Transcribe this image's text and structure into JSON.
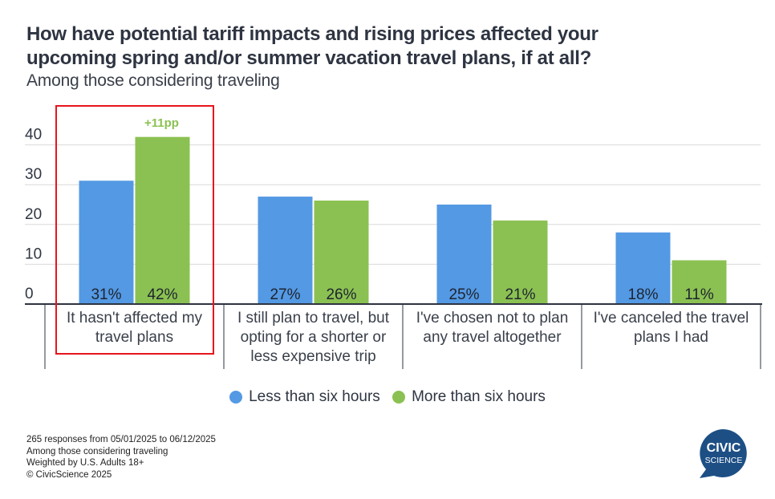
{
  "title_line1": "How have potential tariff impacts and rising prices affected your",
  "title_line2": "upcoming spring and/or summer vacation travel plans, if at all?",
  "subtitle": "Among those considering traveling",
  "highlight": {
    "category_index": 0,
    "annotation": "+11pp",
    "annotation_color": "#8bc152",
    "box_color": "#e8141c"
  },
  "chart_data": {
    "type": "bar",
    "title": "How have potential tariff impacts and rising prices affected your upcoming spring and/or summer vacation travel plans, if at all?",
    "subtitle": "Among those considering traveling",
    "xlabel": "",
    "ylabel": "",
    "ylim": [
      0,
      42
    ],
    "yticks": [
      0,
      10,
      20,
      30,
      40
    ],
    "grid": true,
    "legend_position": "bottom",
    "categories": [
      [
        "It hasn't affected my",
        "travel plans"
      ],
      [
        "I still plan to travel, but",
        "opting for a shorter or",
        "less expensive trip"
      ],
      [
        "I've chosen not to plan",
        "any travel altogether"
      ],
      [
        "I've canceled the travel",
        "plans I had"
      ]
    ],
    "series": [
      {
        "name": "Less than six hours",
        "color": "#5499e3",
        "values": [
          31,
          27,
          25,
          18
        ],
        "labels": [
          "31%",
          "27%",
          "25%",
          "18%"
        ]
      },
      {
        "name": "More than six hours",
        "color": "#8bc152",
        "values": [
          42,
          26,
          21,
          11
        ],
        "labels": [
          "42%",
          "26%",
          "21%",
          "11%"
        ]
      }
    ],
    "annotations": [
      {
        "category": 0,
        "text": "+11pp"
      }
    ]
  },
  "legend": [
    {
      "label": "Less than six hours",
      "color": "#5499e3"
    },
    {
      "label": "More than six hours",
      "color": "#8bc152"
    }
  ],
  "footer": [
    "265 responses from 05/01/2025 to 06/12/2025",
    "Among those considering traveling",
    "Weighted by U.S. Adults 18+",
    "© CivicScience 2025"
  ],
  "logo": {
    "line1": "CIVIC",
    "line2": "SCIENCE",
    "color": "#1d4f85"
  }
}
